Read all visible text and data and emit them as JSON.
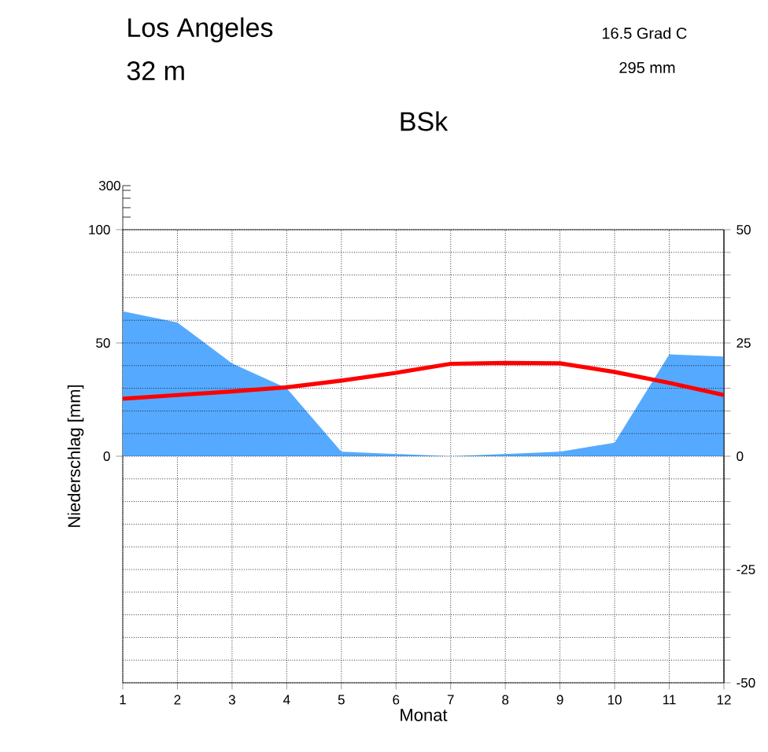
{
  "chart_data": {
    "type": "area",
    "title": "Los Angeles",
    "subtitle": "32 m",
    "annotations": [
      "300",
      "16.5 Grad C",
      "295 mm",
      "BSk"
    ],
    "xlabel": "Monat",
    "ylabel": "Niederschlag [mm]",
    "x": [
      1,
      2,
      3,
      4,
      5,
      6,
      7,
      8,
      9,
      10,
      11,
      12
    ],
    "xlim": [
      1,
      12
    ],
    "xticks": [
      1,
      2,
      3,
      4,
      5,
      6,
      7,
      8,
      9,
      10,
      11,
      12
    ],
    "ylim": [
      -100,
      100
    ],
    "yticks": [
      0,
      50,
      100
    ],
    "y2lim": [
      -50,
      50
    ],
    "y2ticks": [
      -50,
      {
        "value": -45,
        "label": null
      },
      {
        "value": -40,
        "label": null
      },
      {
        "value": -35,
        "label": null
      },
      {
        "value": -30,
        "label": null
      },
      -25,
      {
        "value": -20,
        "label": null
      },
      {
        "value": -15,
        "label": null
      },
      {
        "value": -10,
        "label": null
      },
      {
        "value": -5,
        "label": null
      },
      0,
      {
        "value": 5,
        "label": null
      },
      {
        "value": 10,
        "label": null
      },
      {
        "value": 15,
        "label": null
      },
      {
        "value": 20,
        "label": null
      },
      25,
      {
        "value": 30,
        "label": null
      },
      {
        "value": 35,
        "label": null
      },
      {
        "value": 40,
        "label": null
      },
      {
        "value": 45,
        "label": null
      },
      50
    ],
    "grid": true,
    "series": [
      {
        "color": "#55aaff",
        "values": [
          64,
          59,
          41,
          30,
          2,
          1,
          0,
          1,
          2,
          6,
          45,
          44
        ]
      },
      {
        "type": "line",
        "axis": "y2",
        "color": "#ff0000",
        "values": [
          12.7,
          13.5,
          14.3,
          15.2,
          16.7,
          18.4,
          20.4,
          20.6,
          20.5,
          18.6,
          16.2,
          13.5
        ]
      }
    ]
  }
}
